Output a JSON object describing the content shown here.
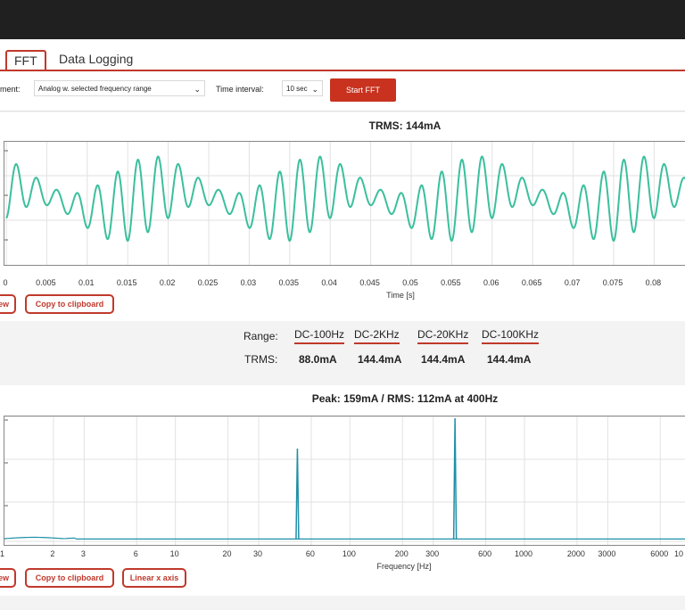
{
  "tabs": [
    {
      "label": "FFT",
      "active": true
    },
    {
      "label": "Data Logging",
      "active": false
    }
  ],
  "toolbar": {
    "measurement_label": "ment:",
    "measurement_value": "Analog w. selected frequency range",
    "time_interval_label": "Time interval:",
    "time_interval_value": "10 sec",
    "start_button": "Start FFT"
  },
  "waveform": {
    "title": "TRMS: 144mA",
    "x_title": "Time [s]",
    "x_ticks": [
      "0",
      "0.005",
      "0.01",
      "0.015",
      "0.02",
      "0.025",
      "0.03",
      "0.035",
      "0.04",
      "0.045",
      "0.05",
      "0.055",
      "0.06",
      "0.065",
      "0.07",
      "0.075",
      "0.08",
      "0.0"
    ],
    "buttons": {
      "view": "ew",
      "copy": "Copy to clipboard"
    },
    "line_color": "#3bbf9d"
  },
  "range_table": {
    "row1_label": "Range:",
    "row2_label": "TRMS:",
    "headers": [
      "DC-100Hz",
      "DC-2KHz",
      "DC-20KHz",
      "DC-100KHz"
    ],
    "values": [
      "88.0mA",
      "144.4mA",
      "144.4mA",
      "144.4mA"
    ]
  },
  "spectrum": {
    "title": "Peak: 159mA / RMS: 112mA at 400Hz",
    "x_title": "Frequency [Hz]",
    "x_ticks": [
      "1",
      "2",
      "3",
      "6",
      "10",
      "20",
      "30",
      "60",
      "100",
      "200",
      "300",
      "600",
      "1000",
      "2000",
      "3000",
      "6000",
      "10"
    ],
    "buttons": {
      "view": "ew",
      "copy": "Copy to clipboard",
      "linear": "Linear x axis"
    },
    "line_color": "#1f8fa8"
  },
  "chart_data": [
    {
      "type": "line",
      "title": "TRMS: 144mA",
      "xlabel": "Time [s]",
      "ylabel": "",
      "xlim": [
        0,
        0.085
      ],
      "grid": true,
      "note_signal": "approx. 400Hz oscillation with 50Hz modulation",
      "x": [
        0,
        0.005,
        0.01,
        0.015,
        0.02,
        0.025,
        0.03,
        0.035,
        0.04,
        0.045,
        0.05,
        0.055,
        0.06,
        0.065,
        0.07,
        0.075,
        0.08
      ]
    },
    {
      "type": "line",
      "title": "Peak: 159mA / RMS: 112mA at 400Hz",
      "xlabel": "Frequency [Hz]",
      "ylabel": "",
      "xscale": "log",
      "xlim": [
        1,
        10000
      ],
      "grid": true,
      "peaks": [
        {
          "x": 50,
          "y_rel": 0.75
        },
        {
          "x": 400,
          "y_rel": 1.0
        }
      ]
    }
  ]
}
